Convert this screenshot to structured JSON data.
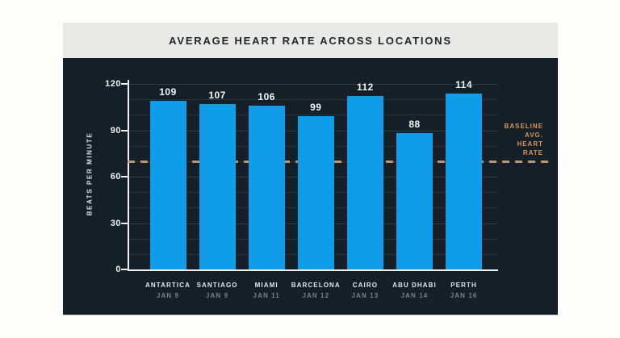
{
  "title_banner": {
    "title": "AVERAGE HEART RATE ACROSS LOCATIONS"
  },
  "chart_data": {
    "type": "bar",
    "title": "AVERAGE HEART RATE ACROSS LOCATIONS",
    "xlabel": "",
    "ylabel": "BEATS PER MINUTE",
    "ylim": [
      0,
      120
    ],
    "yticks": [
      0,
      30,
      60,
      90,
      120
    ],
    "minor_grid_step": 10,
    "grid": "horizontal",
    "legend": "none",
    "categories": [
      "ANTARTICA",
      "SANTIAGO",
      "MIAMI",
      "BARCELONA",
      "CAIRO",
      "ABU DHABI",
      "PERTH"
    ],
    "category_dates": [
      "JAN 9",
      "JAN 9",
      "JAN 11",
      "JAN 12",
      "JAN 13",
      "JAN 14",
      "JAN 16"
    ],
    "values": [
      109,
      107,
      106,
      99,
      112,
      88,
      114
    ],
    "baseline": {
      "value": 70,
      "label_lines": [
        "BASELINE",
        "AVG.",
        "HEART",
        "RATE"
      ]
    },
    "colors": {
      "bar": "#0f9ce9",
      "panel_bg": "#141f28",
      "banner_bg": "#e9e9e7",
      "baseline": "#d59e6b",
      "axis": "#eef1f3",
      "grid": "#2b353e",
      "value_label": "#f4f6f8",
      "city_label": "#e2e6ea",
      "date_label": "#79828a",
      "title_text": "#22262a"
    }
  }
}
